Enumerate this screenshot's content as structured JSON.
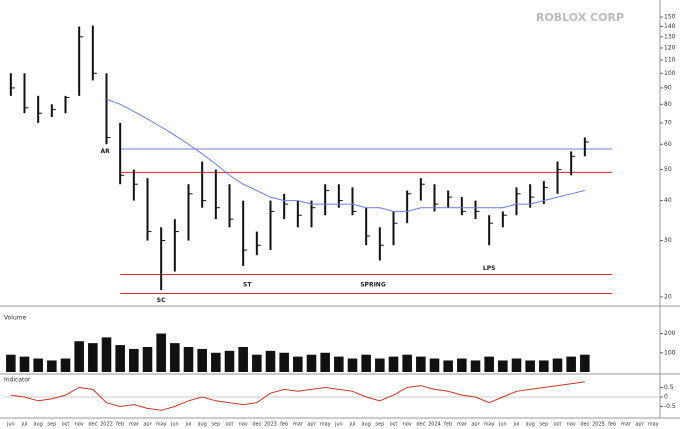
{
  "chart_data": [
    {
      "type": "ohlc",
      "title": "ROBLOX CORP",
      "log_scale": true,
      "categories": [
        "jun",
        "jul",
        "aug",
        "sep",
        "oct",
        "nov",
        "dec",
        "2022",
        "feb",
        "mar",
        "apr",
        "may",
        "jun",
        "jul",
        "aug",
        "sep",
        "oct",
        "nov",
        "dec",
        "2023",
        "feb",
        "mar",
        "apr",
        "may",
        "jun",
        "jul",
        "aug",
        "sep",
        "oct",
        "nov",
        "dec",
        "2024",
        "feb",
        "mar",
        "apr",
        "may",
        "jun",
        "jul",
        "aug",
        "sep",
        "oct",
        "nov",
        "dec",
        "2025",
        "feb",
        "mar",
        "apr",
        "may"
      ],
      "high": [
        100,
        100,
        85,
        80,
        85,
        140,
        141,
        100,
        70,
        50,
        47,
        33,
        35,
        45,
        53,
        50,
        45,
        40,
        32,
        40,
        42,
        40,
        40,
        45,
        45,
        44,
        38,
        33,
        37,
        43,
        47,
        45,
        43,
        41,
        40,
        36,
        37,
        44,
        45,
        46,
        53,
        57,
        63,
        null,
        null,
        null,
        null,
        null
      ],
      "low": [
        85,
        75,
        70,
        73,
        75,
        85,
        95,
        60,
        45,
        40,
        30,
        21,
        24,
        30,
        38,
        35,
        33,
        25,
        27,
        28,
        35,
        33,
        33,
        36,
        38,
        36,
        29,
        26,
        29,
        34,
        40,
        37,
        38,
        36,
        35,
        29,
        33,
        36,
        38,
        39,
        42,
        48,
        55,
        null,
        null,
        null,
        null,
        null
      ],
      "close": [
        90,
        78,
        75,
        77,
        84,
        130,
        100,
        63,
        48,
        45,
        32,
        30,
        32,
        42,
        40,
        38,
        35,
        28,
        29,
        37,
        39,
        36,
        38,
        43,
        40,
        37,
        31,
        29,
        34,
        42,
        45,
        39,
        41,
        37,
        37,
        34,
        36,
        42,
        41,
        44,
        50,
        55,
        61,
        null,
        null,
        null,
        null,
        null
      ],
      "ma": [
        null,
        null,
        null,
        null,
        null,
        null,
        null,
        83,
        80,
        76,
        72,
        68,
        64,
        60,
        56,
        52,
        48,
        45,
        43,
        41,
        40,
        40,
        39,
        39,
        39,
        39,
        38,
        38,
        37,
        37,
        38,
        38,
        38,
        38,
        38,
        38,
        38,
        39,
        39,
        40,
        41,
        42,
        43,
        null,
        null,
        null,
        null,
        null
      ],
      "bar_color": "#111",
      "ma_color": "#6b7fd6",
      "levels": [
        {
          "value": 58,
          "color": "#6b7fd6"
        },
        {
          "value": 49,
          "color": "#d9262c"
        },
        {
          "value": 23.5,
          "color": "#d9262c"
        },
        {
          "value": 20.5,
          "color": "#d9262c"
        }
      ],
      "annotations": [
        {
          "text": "AR",
          "category": 6.9,
          "value": 57
        },
        {
          "text": "SC",
          "category": 11,
          "value": 19.5
        },
        {
          "text": "ST",
          "category": 17.3,
          "value": 21.8
        },
        {
          "text": "SPRING",
          "category": 26.5,
          "value": 21.8
        },
        {
          "text": "LPS",
          "category": 35,
          "value": 24.5
        }
      ],
      "ylim": [
        19,
        160
      ],
      "yticks": [
        20,
        30,
        40,
        50,
        60,
        70,
        80,
        90,
        100,
        110,
        120,
        130,
        140,
        150
      ]
    },
    {
      "type": "bar",
      "title": "Volume",
      "color": "#111",
      "values": [
        90,
        80,
        70,
        60,
        70,
        160,
        150,
        180,
        140,
        120,
        130,
        200,
        150,
        130,
        120,
        100,
        110,
        130,
        90,
        110,
        100,
        80,
        90,
        100,
        80,
        70,
        90,
        70,
        80,
        90,
        80,
        70,
        60,
        70,
        60,
        80,
        60,
        70,
        60,
        60,
        70,
        80,
        90,
        null,
        null,
        null,
        null,
        null
      ],
      "ylim": [
        0,
        260
      ],
      "yticks": [
        100,
        200
      ]
    },
    {
      "type": "line",
      "title": "Indicator",
      "color": "#c0392b",
      "values": [
        0.1,
        0.0,
        -0.2,
        -0.1,
        0.1,
        0.5,
        0.4,
        -0.3,
        -0.5,
        -0.4,
        -0.6,
        -0.7,
        -0.5,
        -0.2,
        0.0,
        -0.2,
        -0.3,
        -0.4,
        -0.3,
        0.2,
        0.4,
        0.3,
        0.4,
        0.5,
        0.4,
        0.3,
        0.0,
        -0.2,
        0.1,
        0.5,
        0.6,
        0.4,
        0.3,
        0.1,
        0.0,
        -0.3,
        0.0,
        0.3,
        0.4,
        0.5,
        0.6,
        0.7,
        0.8,
        null,
        null,
        null,
        null,
        null
      ],
      "ylim": [
        -1,
        1
      ],
      "yticks": [
        -0.5,
        0,
        0.5
      ]
    }
  ]
}
